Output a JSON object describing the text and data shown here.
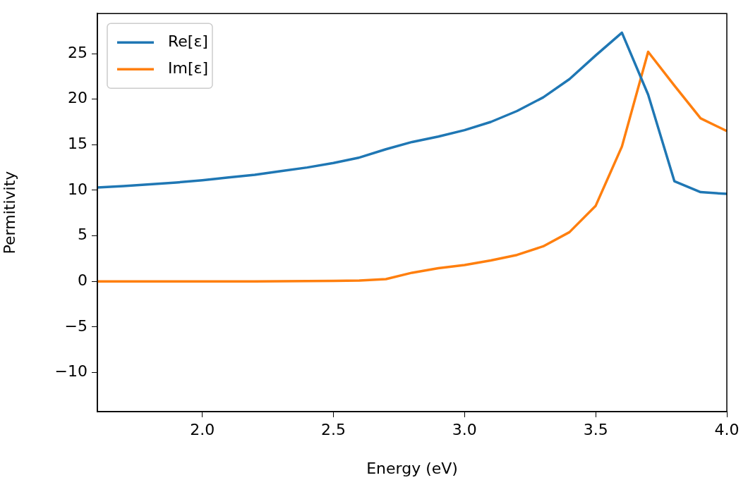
{
  "chart_data": {
    "type": "line",
    "xlabel": "Energy (eV)",
    "ylabel": "Permitivity",
    "x": [
      1.6,
      1.7,
      1.8,
      1.9,
      2.0,
      2.1,
      2.2,
      2.3,
      2.4,
      2.5,
      2.6,
      2.7,
      2.8,
      2.9,
      3.0,
      3.1,
      3.2,
      3.3,
      3.4,
      3.5,
      3.6,
      3.7,
      3.8,
      3.9,
      4.0
    ],
    "series": [
      {
        "name": "Re[ε]",
        "color": "#1f77b4",
        "values": [
          10.3,
          10.45,
          10.65,
          10.85,
          11.1,
          11.4,
          11.7,
          12.1,
          12.5,
          13.0,
          13.6,
          14.5,
          15.3,
          15.9,
          16.6,
          17.5,
          18.7,
          20.2,
          22.2,
          24.8,
          27.3,
          20.5,
          11.0,
          9.8,
          9.6
        ]
      },
      {
        "name": "Im[ε]",
        "color": "#ff7f0e",
        "values": [
          0,
          0,
          0,
          0,
          0,
          0,
          0,
          0.02,
          0.03,
          0.05,
          0.1,
          0.25,
          0.95,
          1.45,
          1.8,
          2.3,
          2.9,
          3.85,
          5.4,
          8.3,
          14.8,
          25.2,
          21.5,
          17.9,
          16.5
        ]
      }
    ],
    "xlim": [
      1.6,
      4.0
    ],
    "xticks": [
      {
        "value": 2.0,
        "label": "2.0"
      },
      2.5,
      {
        "value": 3.0,
        "label": "3.0"
      },
      3.5,
      {
        "value": 4.0,
        "label": "4.0"
      }
    ],
    "ylim": [
      -14.3,
      29.4
    ],
    "yticks": [
      -10,
      -5,
      0,
      5,
      10,
      15,
      20,
      25
    ],
    "legend": "top left",
    "grid": false,
    "marker": "none",
    "line_style": "solid"
  }
}
